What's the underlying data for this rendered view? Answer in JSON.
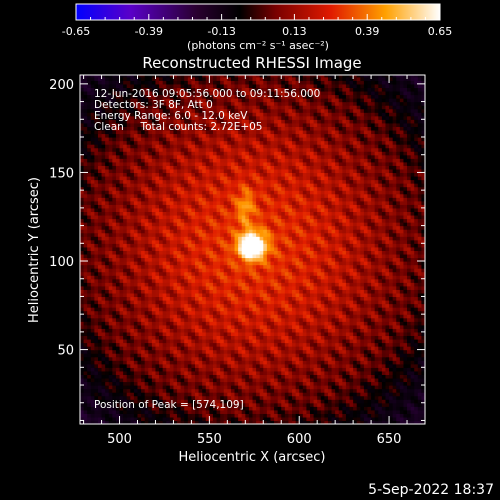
{
  "chart_data": {
    "type": "heatmap",
    "title": "Reconstructed RHESSI Image",
    "xlabel": "Heliocentric X (arcsec)",
    "ylabel": "Heliocentric Y (arcsec)",
    "xlim": [
      478,
      670
    ],
    "ylim": [
      8,
      205
    ],
    "x_ticks": [
      500,
      550,
      600,
      650
    ],
    "y_ticks": [
      50,
      100,
      150,
      200
    ],
    "colorbar": {
      "range": [
        -0.65,
        0.65
      ],
      "ticks": [
        "-0.65",
        "-0.39",
        "-0.13",
        "0.13",
        "0.39",
        "0.65"
      ],
      "units_label": "(photons cm⁻² s⁻¹ asec⁻²)",
      "colormap": "purple-black-red-yellow-white"
    },
    "annotations": [
      "12-Jun-2016 09:05:56.000 to 09:11:56.000",
      "Detectors: 3F 8F, Att 0",
      "Energy Range: 6.0 - 12.0 keV",
      "Clean     Total counts: 2.72E+05"
    ],
    "peak_label": "Position of Peak = [574,109]",
    "peak": {
      "x": 574,
      "y": 109
    },
    "source_extension": {
      "x": 570,
      "y": 131
    }
  },
  "footer": {
    "timestamp": "5-Sep-2022 18:37"
  },
  "colors": {
    "background": "#000000",
    "text": "#ffffff"
  }
}
